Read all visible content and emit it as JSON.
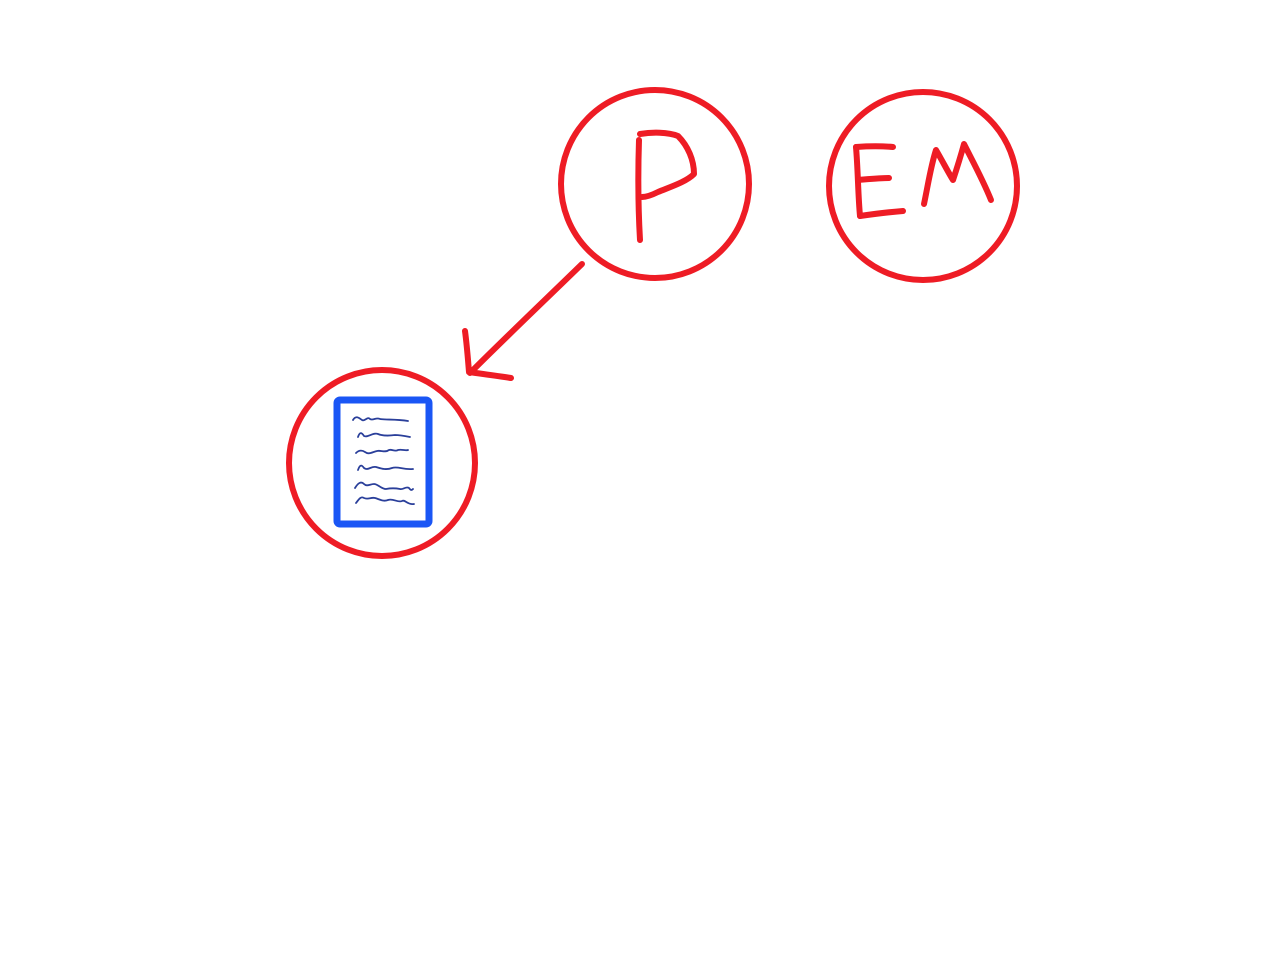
{
  "diagram": {
    "colors": {
      "circle_stroke": "#ee1c25",
      "arrow_stroke": "#ee1c25",
      "letter_stroke": "#ee1c25",
      "document_stroke": "#1a56f5",
      "document_lines": "#2a3f9a",
      "background": "#ffffff"
    },
    "nodes": [
      {
        "id": "p-node",
        "label": "P",
        "icon": "letter-p"
      },
      {
        "id": "em-node",
        "label": "EM",
        "icon": "letters-em"
      },
      {
        "id": "document-node",
        "label": "",
        "icon": "document-icon"
      }
    ],
    "edges": [
      {
        "from": "p-node",
        "to": "document-node",
        "style": "arrow"
      }
    ]
  }
}
